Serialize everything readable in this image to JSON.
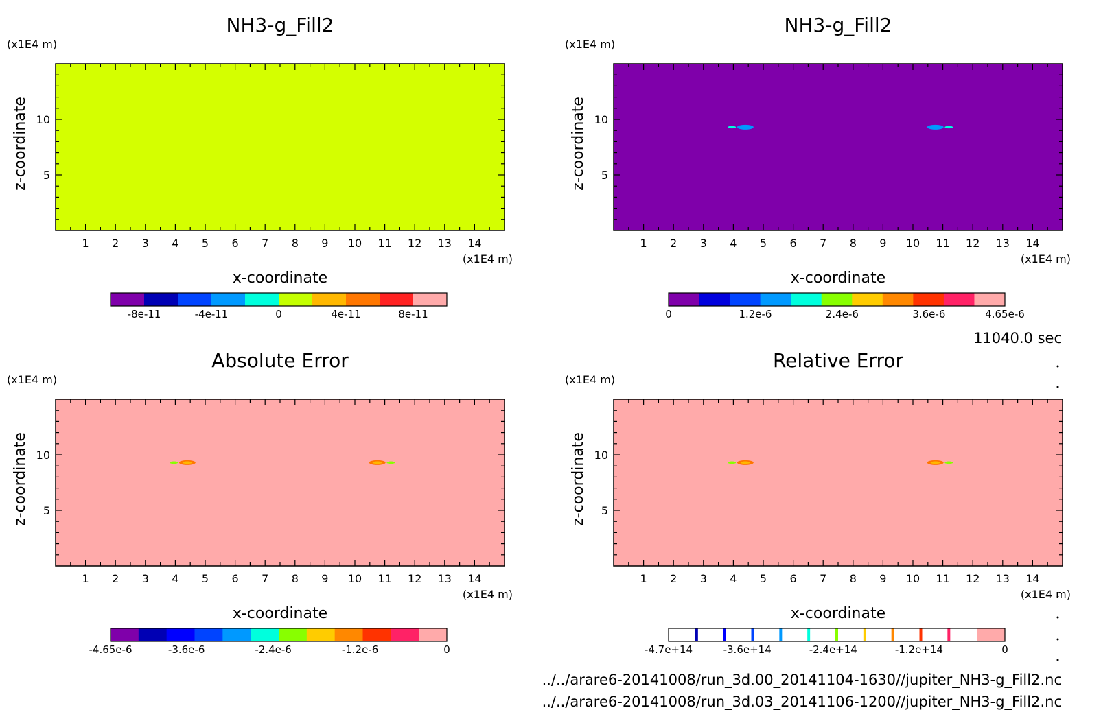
{
  "time_label": "11040.0 sec",
  "files": [
    "../../arare6-20141008/run_3d.00_20141104-1630//jupiter_NH3-g_Fill2.nc",
    "../../arare6-20141008/run_3d.03_20141106-1200//jupiter_NH3-g_Fill2.nc"
  ],
  "chart_data": [
    {
      "type": "heatmap",
      "title": "NH3-g_Fill2",
      "xlabel": "x-coordinate",
      "ylabel": "z-coordinate",
      "x_unit": "(x1E4 m)",
      "y_unit": "(x1E4 m)",
      "xlim": [
        0,
        15
      ],
      "ylim": [
        0,
        15
      ],
      "x_ticks": [
        1,
        2,
        3,
        4,
        5,
        6,
        7,
        8,
        9,
        10,
        11,
        12,
        13,
        14
      ],
      "y_ticks": [
        5,
        10
      ],
      "field_color": "#d4ff00",
      "features": [],
      "colorbar": {
        "colors": [
          "#7f00aa",
          "#0000b4",
          "#0044ff",
          "#0099ff",
          "#00ffdd",
          "#c4ff00",
          "#ffb800",
          "#ff7700",
          "#ff2222",
          "#ffaaaa"
        ],
        "tick_labels": [
          "-8e-11",
          "-4e-11",
          "0",
          "4e-11",
          "8e-11"
        ],
        "tick_values": [
          -8e-11,
          -4e-11,
          0,
          4e-11,
          8e-11
        ],
        "range": [
          -1e-10,
          1e-10
        ],
        "markers": false
      }
    },
    {
      "type": "heatmap",
      "title": "NH3-g_Fill2",
      "xlabel": "x-coordinate",
      "ylabel": "z-coordinate",
      "x_unit": "(x1E4 m)",
      "y_unit": "(x1E4 m)",
      "xlim": [
        0,
        15
      ],
      "ylim": [
        0,
        15
      ],
      "x_ticks": [
        1,
        2,
        3,
        4,
        5,
        6,
        7,
        8,
        9,
        10,
        11,
        12,
        13,
        14
      ],
      "y_ticks": [
        5,
        10
      ],
      "field_color": "#7f00aa",
      "features": [
        {
          "x": 4.4,
          "z": 9.3,
          "color": "#0099ff"
        },
        {
          "x": 3.95,
          "z": 9.3,
          "color": "#00ffdd"
        },
        {
          "x": 10.75,
          "z": 9.3,
          "color": "#0099ff"
        },
        {
          "x": 11.2,
          "z": 9.3,
          "color": "#00ffdd"
        }
      ],
      "colorbar": {
        "colors": [
          "#7f00aa",
          "#0000dd",
          "#0044ff",
          "#0099ff",
          "#00ffdd",
          "#88ff00",
          "#ffcc00",
          "#ff8800",
          "#ff3300",
          "#ff2266",
          "#ffaaaa"
        ],
        "tick_labels": [
          "0",
          "1.2e-6",
          "2.4e-6",
          "3.6e-6",
          "4.65e-6"
        ],
        "tick_values": [
          0,
          1.2e-06,
          2.4e-06,
          3.6e-06,
          4.65e-06
        ],
        "range": [
          0,
          4.65e-06
        ],
        "markers": false
      }
    },
    {
      "type": "heatmap",
      "title": "Absolute Error",
      "xlabel": "x-coordinate",
      "ylabel": "z-coordinate",
      "x_unit": "(x1E4 m)",
      "y_unit": "(x1E4 m)",
      "xlim": [
        0,
        15
      ],
      "ylim": [
        0,
        15
      ],
      "x_ticks": [
        1,
        2,
        3,
        4,
        5,
        6,
        7,
        8,
        9,
        10,
        11,
        12,
        13,
        14
      ],
      "y_ticks": [
        5,
        10
      ],
      "field_color": "#ffaaaa",
      "features": [
        {
          "x": 4.4,
          "z": 9.3,
          "color": "#ff7700"
        },
        {
          "x": 4.4,
          "z": 9.3,
          "color": "#ffb800",
          "small": true
        },
        {
          "x": 3.95,
          "z": 9.3,
          "color": "#88ff00"
        },
        {
          "x": 10.75,
          "z": 9.3,
          "color": "#ff7700"
        },
        {
          "x": 10.75,
          "z": 9.3,
          "color": "#ffb800",
          "small": true
        },
        {
          "x": 11.2,
          "z": 9.3,
          "color": "#88ff00"
        }
      ],
      "colorbar": {
        "colors": [
          "#7f00aa",
          "#0000b4",
          "#0000ff",
          "#0044ff",
          "#0099ff",
          "#00ffdd",
          "#88ff00",
          "#ffcc00",
          "#ff8800",
          "#ff3300",
          "#ff2266",
          "#ffaaaa"
        ],
        "tick_labels": [
          "-4.65e-6",
          "-3.6e-6",
          "-2.4e-6",
          "-1.2e-6",
          "0"
        ],
        "tick_values": [
          -4.65e-06,
          -3.6e-06,
          -2.4e-06,
          -1.2e-06,
          0
        ],
        "range": [
          -4.65e-06,
          0
        ],
        "markers": false
      }
    },
    {
      "type": "heatmap",
      "title": "Relative Error",
      "xlabel": "x-coordinate",
      "ylabel": "z-coordinate",
      "x_unit": "(x1E4 m)",
      "y_unit": "(x1E4 m)",
      "xlim": [
        0,
        15
      ],
      "ylim": [
        0,
        15
      ],
      "x_ticks": [
        1,
        2,
        3,
        4,
        5,
        6,
        7,
        8,
        9,
        10,
        11,
        12,
        13,
        14
      ],
      "y_ticks": [
        5,
        10
      ],
      "field_color": "#ffaaaa",
      "features": [
        {
          "x": 4.4,
          "z": 9.3,
          "color": "#ff7700"
        },
        {
          "x": 4.4,
          "z": 9.3,
          "color": "#ffb800",
          "small": true
        },
        {
          "x": 3.95,
          "z": 9.3,
          "color": "#88ff00"
        },
        {
          "x": 10.75,
          "z": 9.3,
          "color": "#ff7700"
        },
        {
          "x": 10.75,
          "z": 9.3,
          "color": "#ffb800",
          "small": true
        },
        {
          "x": 11.2,
          "z": 9.3,
          "color": "#88ff00"
        }
      ],
      "colorbar": {
        "colors": [
          "#ffffff",
          "#ffffff",
          "#ffffff",
          "#ffffff",
          "#ffffff",
          "#ffffff",
          "#ffffff",
          "#ffffff",
          "#ffffff",
          "#ffffff",
          "#ffffff",
          "#ffaaaa"
        ],
        "marker_colors": [
          "#0000b4",
          "#0000ff",
          "#0044ff",
          "#0099ff",
          "#00ffdd",
          "#88ff00",
          "#ffcc00",
          "#ff8800",
          "#ff3300",
          "#ff2266"
        ],
        "tick_labels": [
          "-4.7e+14",
          "-3.6e+14",
          "-2.4e+14",
          "-1.2e+14",
          "0"
        ],
        "tick_values": [
          -470000000000000.0,
          -360000000000000.0,
          -240000000000000.0,
          -120000000000000.0,
          0
        ],
        "range": [
          -470000000000000.0,
          0
        ],
        "markers": true
      }
    }
  ]
}
